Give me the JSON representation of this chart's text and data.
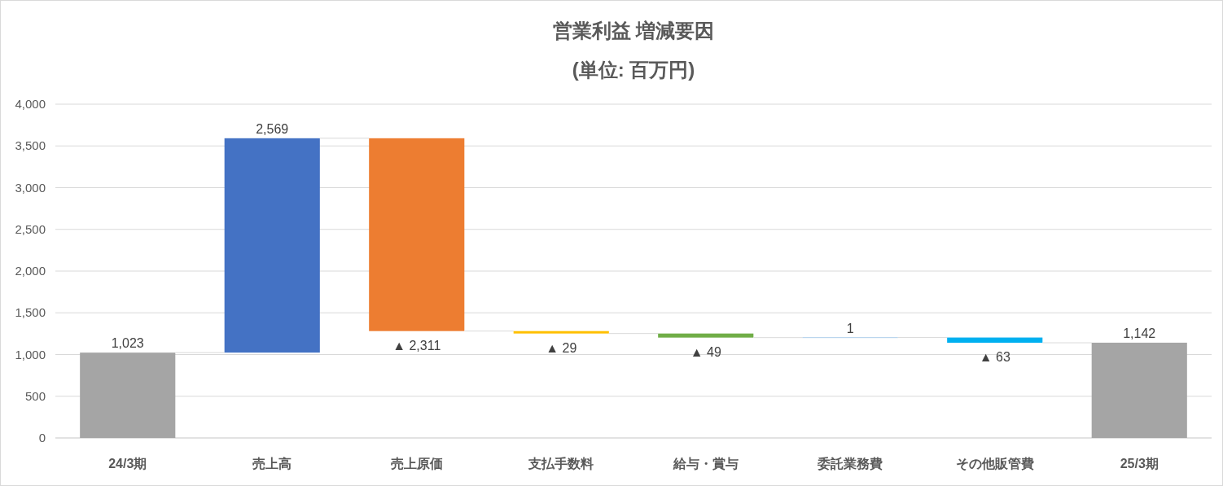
{
  "chart_data": {
    "type": "bar",
    "title": "営業利益 増減要因",
    "subtitle": "(単位: 百万円)",
    "categories": [
      "24/3期",
      "売上高",
      "売上原価",
      "支払手数料",
      "給与・賞与",
      "委託業務費",
      "その他販管費",
      "25/3期"
    ],
    "values": [
      1023,
      2569,
      -2311,
      -29,
      -49,
      1,
      -63,
      1142
    ],
    "base": [
      0,
      1023,
      3592,
      1281,
      1252,
      1203,
      1204,
      0
    ],
    "colors": [
      "#a5a5a5",
      "#4472c4",
      "#ed7d31",
      "#ffc000",
      "#70ad47",
      "#5b9bd5",
      "#00b0f0",
      "#a5a5a5"
    ],
    "value_labels": [
      "1,023",
      "2,569",
      "▲ 2,311",
      "▲ 29",
      "▲ 49",
      "1",
      "▲ 63",
      "1,142"
    ],
    "ylim": [
      0,
      4000
    ],
    "yticks": [
      0,
      500,
      {
        "value": 1000,
        "label": "1,000"
      },
      {
        "value": 1500,
        "label": "1,500"
      },
      {
        "value": 2000,
        "label": "2,000"
      },
      {
        "value": 2500,
        "label": "2,500"
      },
      {
        "value": 3000,
        "label": "3,000"
      },
      {
        "value": 3500,
        "label": "3,500"
      },
      {
        "value": 4000,
        "label": "4,000"
      }
    ],
    "grid": "y"
  }
}
